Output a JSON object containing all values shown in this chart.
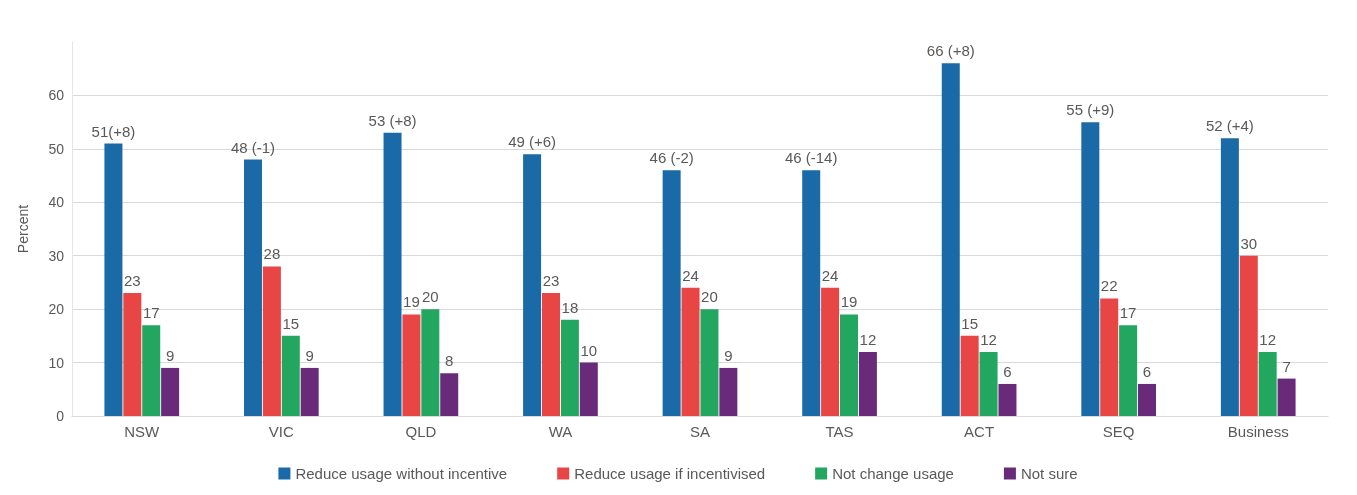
{
  "chart_data": {
    "type": "bar",
    "ylabel": "Percent",
    "categories": [
      "NSW",
      "VIC",
      "QLD",
      "WA",
      "SA",
      "TAS",
      "ACT",
      "SEQ",
      "Business"
    ],
    "series": [
      {
        "name": "Reduce usage without incentive",
        "color": "#1a6aa8",
        "values": [
          51,
          48,
          53,
          49,
          46,
          46,
          66,
          55,
          52
        ],
        "value_labels": [
          "51(+8)",
          "48 (-1)",
          "53 (+8)",
          "49 (+6)",
          "46 (-2)",
          "46 (-14)",
          "66 (+8)",
          "55 (+9)",
          "52 (+4)"
        ]
      },
      {
        "name": "Reduce usage if incentivised",
        "color": "#e84545",
        "values": [
          23,
          28,
          19,
          23,
          24,
          24,
          15,
          22,
          30
        ],
        "value_labels": [
          "23",
          "28",
          "19",
          "23",
          "24",
          "24",
          "15",
          "22",
          "30"
        ]
      },
      {
        "name": "Not change usage",
        "color": "#22a660",
        "values": [
          17,
          15,
          20,
          18,
          20,
          19,
          12,
          17,
          12
        ],
        "value_labels": [
          "17",
          "15",
          "20",
          "18",
          "20",
          "19",
          "12",
          "17",
          "12"
        ]
      },
      {
        "name": "Not sure",
        "color": "#6a2a7a",
        "values": [
          9,
          9,
          8,
          10,
          9,
          12,
          6,
          6,
          7
        ],
        "value_labels": [
          "9",
          "9",
          "8",
          "10",
          "9",
          "12",
          "6",
          "6",
          "7"
        ]
      }
    ],
    "ylim": [
      0,
      70
    ],
    "yticks": [
      0,
      10,
      20,
      30,
      40,
      50,
      60
    ],
    "grid": "y",
    "legend": "bottom"
  }
}
